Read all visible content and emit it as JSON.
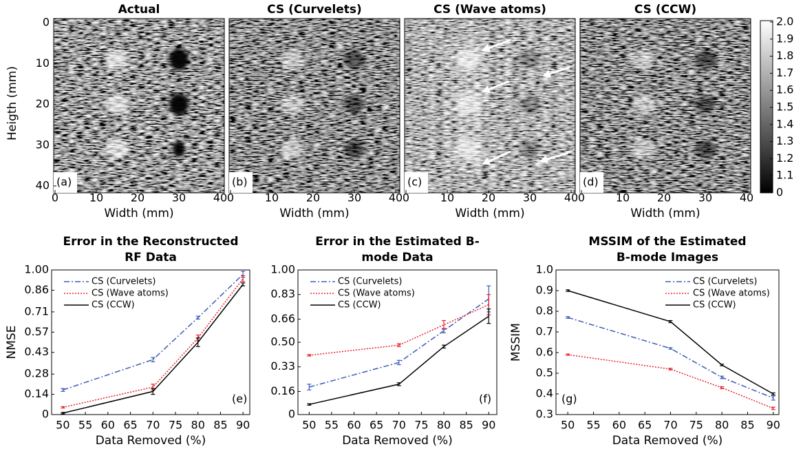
{
  "image_figure": {
    "panels": [
      {
        "title": "Actual",
        "label": "(a)"
      },
      {
        "title": "CS (Curvelets)",
        "label": "(b)"
      },
      {
        "title": "CS (Wave atoms)",
        "label": "(c)"
      },
      {
        "title": "CS (CCW)",
        "label": "(d)"
      }
    ],
    "xlabel": "Width (mm)",
    "ylabel": "Heigth (mm)",
    "xlim": [
      0,
      40
    ],
    "ylim": [
      0,
      40
    ],
    "xticks": [
      0,
      10,
      20,
      30,
      40
    ],
    "yticks": [
      0,
      10,
      20,
      30,
      40
    ],
    "colorbar_ticks": [
      "0",
      "1.1",
      "1.2",
      "1.3",
      "1.4",
      "1.5",
      "1.6",
      "1.7",
      "1.8",
      "1.9",
      "2.0"
    ]
  },
  "chart_data": [
    {
      "type": "line",
      "title": "Error in the Reconstructed RF Data",
      "xlabel": "Data Removed (%)",
      "ylabel": "NMSE",
      "panel_label": "(e)",
      "x": [
        50,
        70,
        80,
        90
      ],
      "xlim": [
        47.5,
        91.5
      ],
      "xticks": [
        50,
        55,
        60,
        65,
        70,
        75,
        80,
        85,
        90
      ],
      "ylim": [
        0,
        1
      ],
      "yticks": [
        0,
        0.14,
        0.28,
        0.43,
        0.57,
        0.71,
        0.86,
        {
          "value": 1,
          "label": "1.00"
        }
      ],
      "legend": "upper left",
      "series": [
        {
          "name": "CS (Curvelets)",
          "color": "#3b5bb5",
          "dash": "dashdot",
          "values": [
            0.17,
            0.38,
            0.67,
            0.97
          ],
          "errors": [
            0.01,
            0.015,
            0.01,
            0.02
          ]
        },
        {
          "name": "CS (Wave atoms)",
          "color": "#e8202a",
          "dash": "dotted",
          "values": [
            0.05,
            0.19,
            0.53,
            0.94
          ],
          "errors": [
            0.005,
            0.02,
            0.02,
            0.02
          ]
        },
        {
          "name": "CS (CCW)",
          "color": "#000000",
          "dash": "solid",
          "values": [
            0.01,
            0.16,
            0.5,
            0.9
          ],
          "errors": [
            0.005,
            0.02,
            0.03,
            0.01
          ]
        }
      ]
    },
    {
      "type": "line",
      "title": "Error in the Estimated B-mode Data",
      "panel_label": "(f)",
      "xlabel": "Data Removed (%)",
      "x": [
        50,
        70,
        80,
        90
      ],
      "xlim": [
        47.5,
        91.8
      ],
      "xticks": [
        50,
        55,
        60,
        65,
        70,
        75,
        80,
        85,
        90
      ],
      "ylim": [
        0,
        1
      ],
      "yticks": [
        0,
        0.16,
        0.33,
        {
          "value": 0.5,
          "label": "0.50"
        },
        0.66,
        0.83,
        {
          "value": 1,
          "label": "1.00"
        }
      ],
      "legend": "upper left",
      "series": [
        {
          "name": "CS (Curvelets)",
          "color": "#3b5bb5",
          "dash": "dashdot",
          "values": [
            0.19,
            0.36,
            0.58,
            0.8
          ],
          "errors": [
            0.02,
            0.015,
            0.015,
            0.09
          ]
        },
        {
          "name": "CS (Wave atoms)",
          "color": "#e8202a",
          "dash": "dotted",
          "values": [
            0.41,
            0.48,
            0.62,
            0.76
          ],
          "errors": [
            0.005,
            0.01,
            0.03,
            0.07
          ]
        },
        {
          "name": "CS (CCW)",
          "color": "#000000",
          "dash": "solid",
          "values": [
            0.07,
            0.21,
            0.47,
            0.68
          ],
          "errors": [
            0.005,
            0.01,
            0.01,
            0.05
          ]
        }
      ]
    },
    {
      "type": "line",
      "title": "MSSIM of the Estimated B-mode Images",
      "panel_label": "(g)",
      "xlabel": "Data Removed (%)",
      "ylabel": "MSSIM",
      "x": [
        50,
        70,
        80,
        90
      ],
      "xlim": [
        47.7,
        91.1
      ],
      "xticks": [
        50,
        55,
        60,
        65,
        70,
        75,
        80,
        85,
        90
      ],
      "ylim": [
        0.3,
        1
      ],
      "yticks": [
        0.3,
        0.4,
        0.5,
        0.6,
        0.7,
        0.8,
        0.9,
        {
          "value": 1,
          "label": "1.0"
        }
      ],
      "legend": "upper right",
      "series": [
        {
          "name": "CS (Curvelets)",
          "color": "#3b5bb5",
          "dash": "dashdot",
          "values": [
            0.77,
            0.62,
            0.48,
            0.38
          ],
          "errors": [
            0.004,
            0.004,
            0.006,
            0.01
          ]
        },
        {
          "name": "CS (Wave atoms)",
          "color": "#e8202a",
          "dash": "dotted",
          "values": [
            0.59,
            0.52,
            0.43,
            0.33
          ],
          "errors": [
            0.003,
            0.004,
            0.005,
            0.006
          ]
        },
        {
          "name": "CS (CCW)",
          "color": "#000000",
          "dash": "solid",
          "values": [
            0.9,
            0.75,
            0.54,
            0.4
          ],
          "errors": [
            0.004,
            0.005,
            0.004,
            0.005
          ]
        }
      ]
    }
  ]
}
